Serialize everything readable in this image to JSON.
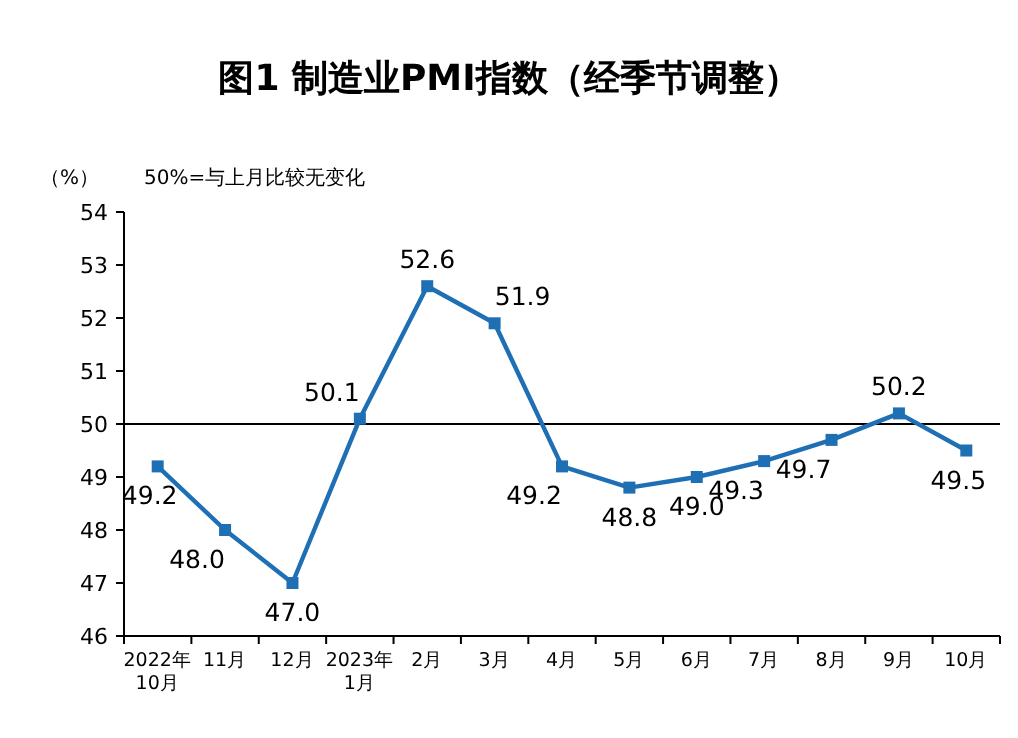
{
  "chart_data": {
    "type": "line",
    "title": "图1 制造业PMI指数（经季节调整）",
    "ylabel": "（%）",
    "annotations": [
      "50%=与上月比较无变化"
    ],
    "categories": [
      "2022年\n10月",
      "11月",
      "12月",
      "2023年\n1月",
      "2月",
      "3月",
      "4月",
      "5月",
      "6月",
      "7月",
      "8月",
      "9月",
      "10月"
    ],
    "series": [
      {
        "color": "#1f6fb4",
        "values": [
          49.2,
          48.0,
          47.0,
          50.1,
          52.6,
          51.9,
          49.2,
          48.8,
          49.0,
          49.3,
          49.7,
          50.2,
          49.5
        ],
        "value_labels": [
          "49.2",
          "48.0",
          "47.0",
          "50.1",
          "52.6",
          "51.9",
          "49.2",
          "48.8",
          "49.0",
          "49.3",
          "49.7",
          "50.2",
          "49.5"
        ]
      }
    ],
    "ylim": [
      46,
      54
    ],
    "yticks": [
      46,
      47,
      48,
      49,
      50,
      51,
      52,
      53,
      54
    ],
    "ref_lines": [
      {
        "axis": "y",
        "value": 50,
        "color": "#000000"
      }
    ],
    "grid": false,
    "marker": "square",
    "line_style": "solid"
  }
}
